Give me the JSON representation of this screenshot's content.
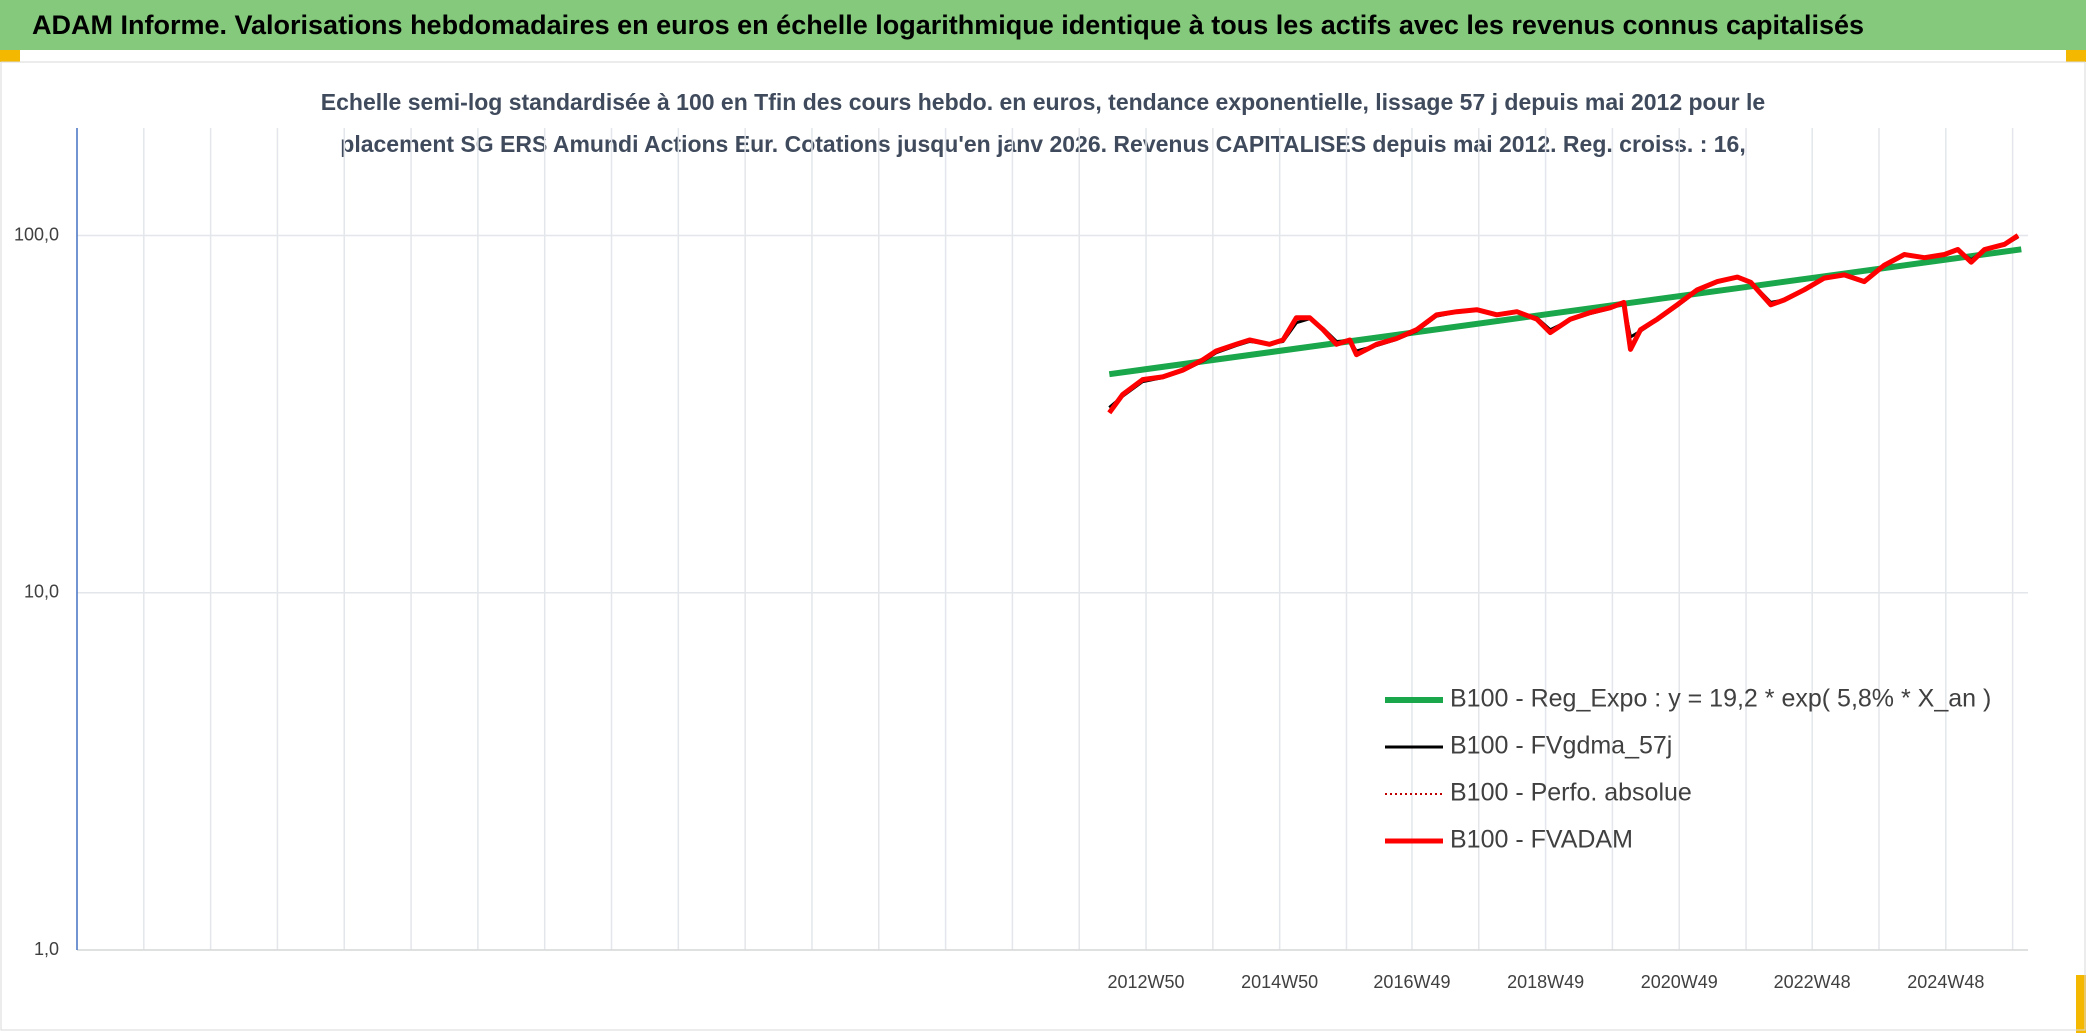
{
  "header": {
    "title": "ADAM Informe. Valorisations hebdomadaires en euros en échelle logarithmique identique à tous les actifs avec les revenus connus capitalisés"
  },
  "chart_data": {
    "type": "line",
    "subtitle": [
      "Echelle semi-log standardisée à 100 en Tfin des cours hebdo. en euros, tendance exponentielle, lissage 57 j depuis mai 2012 pour le",
      "placement SG ERS Amundi Actions Eur. Cotations jusqu'en janv 2026. Revenus CAPITALISES depuis mai 2012. Reg. croiss. : 16,"
    ],
    "log_y": true,
    "grid": true,
    "legend": "lower right",
    "xlim": [
      1996.95,
      2026.15
    ],
    "xticks": [
      {
        "value": 2012.95,
        "label": "2012W50"
      },
      {
        "value": 2014.95,
        "label": "2014W50"
      },
      {
        "value": 2016.93,
        "label": "2016W49"
      },
      {
        "value": 2018.93,
        "label": "2018W49"
      },
      {
        "value": 2020.93,
        "label": "2020W49"
      },
      {
        "value": 2022.92,
        "label": "2022W48"
      },
      {
        "value": 2024.92,
        "label": "2024W48"
      }
    ],
    "ylim": [
      1,
      200
    ],
    "yticks": [
      {
        "value": 1,
        "label": "1,0"
      },
      {
        "value": 10,
        "label": "10,0"
      },
      {
        "value": 100,
        "label": "100,0"
      }
    ],
    "series": [
      {
        "name": "B100 - Reg_Expo : y = 19,2 * exp( 5,8% *  X_an )",
        "color": "#1aa64a",
        "style": "solid",
        "width": 6,
        "x": [
          2012.4,
          2026.05
        ],
        "values": [
          40.9,
          91.5
        ]
      },
      {
        "name": "B100 - FVgdma_57j",
        "color": "#000000",
        "style": "solid",
        "width": 3,
        "x": [
          2012.4,
          2012.6,
          2012.9,
          2013.2,
          2013.5,
          2013.8,
          2014.0,
          2014.3,
          2014.5,
          2014.8,
          2015.0,
          2015.2,
          2015.4,
          2015.6,
          2015.8,
          2016.0,
          2016.1,
          2016.4,
          2016.7,
          2017.0,
          2017.3,
          2017.6,
          2017.9,
          2018.2,
          2018.5,
          2018.8,
          2019.0,
          2019.3,
          2019.6,
          2019.9,
          2020.1,
          2020.2,
          2020.35,
          2020.6,
          2020.9,
          2021.2,
          2021.5,
          2021.8,
          2022.0,
          2022.3,
          2022.5,
          2022.8,
          2023.1,
          2023.4,
          2023.7,
          2024.0,
          2024.3,
          2024.6,
          2024.9,
          2025.1,
          2025.3,
          2025.5,
          2025.8,
          2026.0
        ],
        "values": [
          33.0,
          35.5,
          39.0,
          40.0,
          41.8,
          44.5,
          47.0,
          49.2,
          50.5,
          49.8,
          50.5,
          57.0,
          58.5,
          55.0,
          50.5,
          50.5,
          47.5,
          49.2,
          51.2,
          54.0,
          59.5,
          61.0,
          61.8,
          60.2,
          61.0,
          58.8,
          54.5,
          58.0,
          60.5,
          62.5,
          64.5,
          52.0,
          54.0,
          58.0,
          63.5,
          70.0,
          74.0,
          76.2,
          74.2,
          65.0,
          66.0,
          70.2,
          75.6,
          77.4,
          74.8,
          82.0,
          88.0,
          86.9,
          88.3,
          91.0,
          85.5,
          91.0,
          94.2,
          99.0
        ]
      },
      {
        "name": "B100 - Perfo. absolue",
        "color": "#c00000",
        "style": "dotted",
        "width": 2,
        "x": [
          2012.4,
          2012.6,
          2012.9,
          2013.2,
          2013.5,
          2013.8,
          2014.0,
          2014.3,
          2014.5,
          2014.8,
          2015.0,
          2015.2,
          2015.4,
          2015.6,
          2015.8,
          2016.0,
          2016.1,
          2016.4,
          2016.7,
          2017.0,
          2017.3,
          2017.6,
          2017.9,
          2018.2,
          2018.5,
          2018.8,
          2019.0,
          2019.3,
          2019.6,
          2019.9,
          2020.1,
          2020.2,
          2020.35,
          2020.6,
          2020.9,
          2021.2,
          2021.5,
          2021.8,
          2022.0,
          2022.3,
          2022.5,
          2022.8,
          2023.1,
          2023.4,
          2023.7,
          2024.0,
          2024.3,
          2024.6,
          2024.9,
          2025.1,
          2025.3,
          2025.5,
          2025.8,
          2026.0
        ],
        "values": [
          31.9,
          35.9,
          39.5,
          40.2,
          42.0,
          44.9,
          47.5,
          49.6,
          51.0,
          49.6,
          51.0,
          58.9,
          58.9,
          54.5,
          49.6,
          51.0,
          46.4,
          49.6,
          51.5,
          54.5,
          60.0,
          61.2,
          62.0,
          60.0,
          61.2,
          58.3,
          53.5,
          58.3,
          60.9,
          62.8,
          65.0,
          48.0,
          54.5,
          58.3,
          64.0,
          70.5,
          74.3,
          76.5,
          74.0,
          64.0,
          66.0,
          70.5,
          76.0,
          77.6,
          74.3,
          82.6,
          88.5,
          86.7,
          88.5,
          91.4,
          84.2,
          91.4,
          94.5,
          100.0
        ]
      },
      {
        "name": "B100 - FVADAM",
        "color": "#ff0000",
        "style": "solid",
        "width": 5,
        "x": [
          2012.4,
          2012.6,
          2012.9,
          2013.2,
          2013.5,
          2013.8,
          2014.0,
          2014.3,
          2014.5,
          2014.8,
          2015.0,
          2015.2,
          2015.4,
          2015.6,
          2015.8,
          2016.0,
          2016.1,
          2016.4,
          2016.7,
          2017.0,
          2017.3,
          2017.6,
          2017.9,
          2018.2,
          2018.5,
          2018.8,
          2019.0,
          2019.3,
          2019.6,
          2019.9,
          2020.1,
          2020.2,
          2020.35,
          2020.6,
          2020.9,
          2021.2,
          2021.5,
          2021.8,
          2022.0,
          2022.3,
          2022.5,
          2022.8,
          2023.1,
          2023.4,
          2023.7,
          2024.0,
          2024.3,
          2024.6,
          2024.9,
          2025.1,
          2025.3,
          2025.5,
          2025.8,
          2026.0
        ],
        "values": [
          31.9,
          35.9,
          39.5,
          40.2,
          42.0,
          44.9,
          47.5,
          49.6,
          51.0,
          49.6,
          51.0,
          58.9,
          58.9,
          54.5,
          49.6,
          51.0,
          46.4,
          49.6,
          51.5,
          54.5,
          60.0,
          61.2,
          62.0,
          60.0,
          61.2,
          58.3,
          53.5,
          58.3,
          60.9,
          62.8,
          65.0,
          48.0,
          54.5,
          58.3,
          64.0,
          70.5,
          74.3,
          76.5,
          74.0,
          64.0,
          66.0,
          70.5,
          76.0,
          77.6,
          74.3,
          82.6,
          88.5,
          86.7,
          88.5,
          91.4,
          84.2,
          91.4,
          94.5,
          100.0
        ]
      }
    ]
  }
}
